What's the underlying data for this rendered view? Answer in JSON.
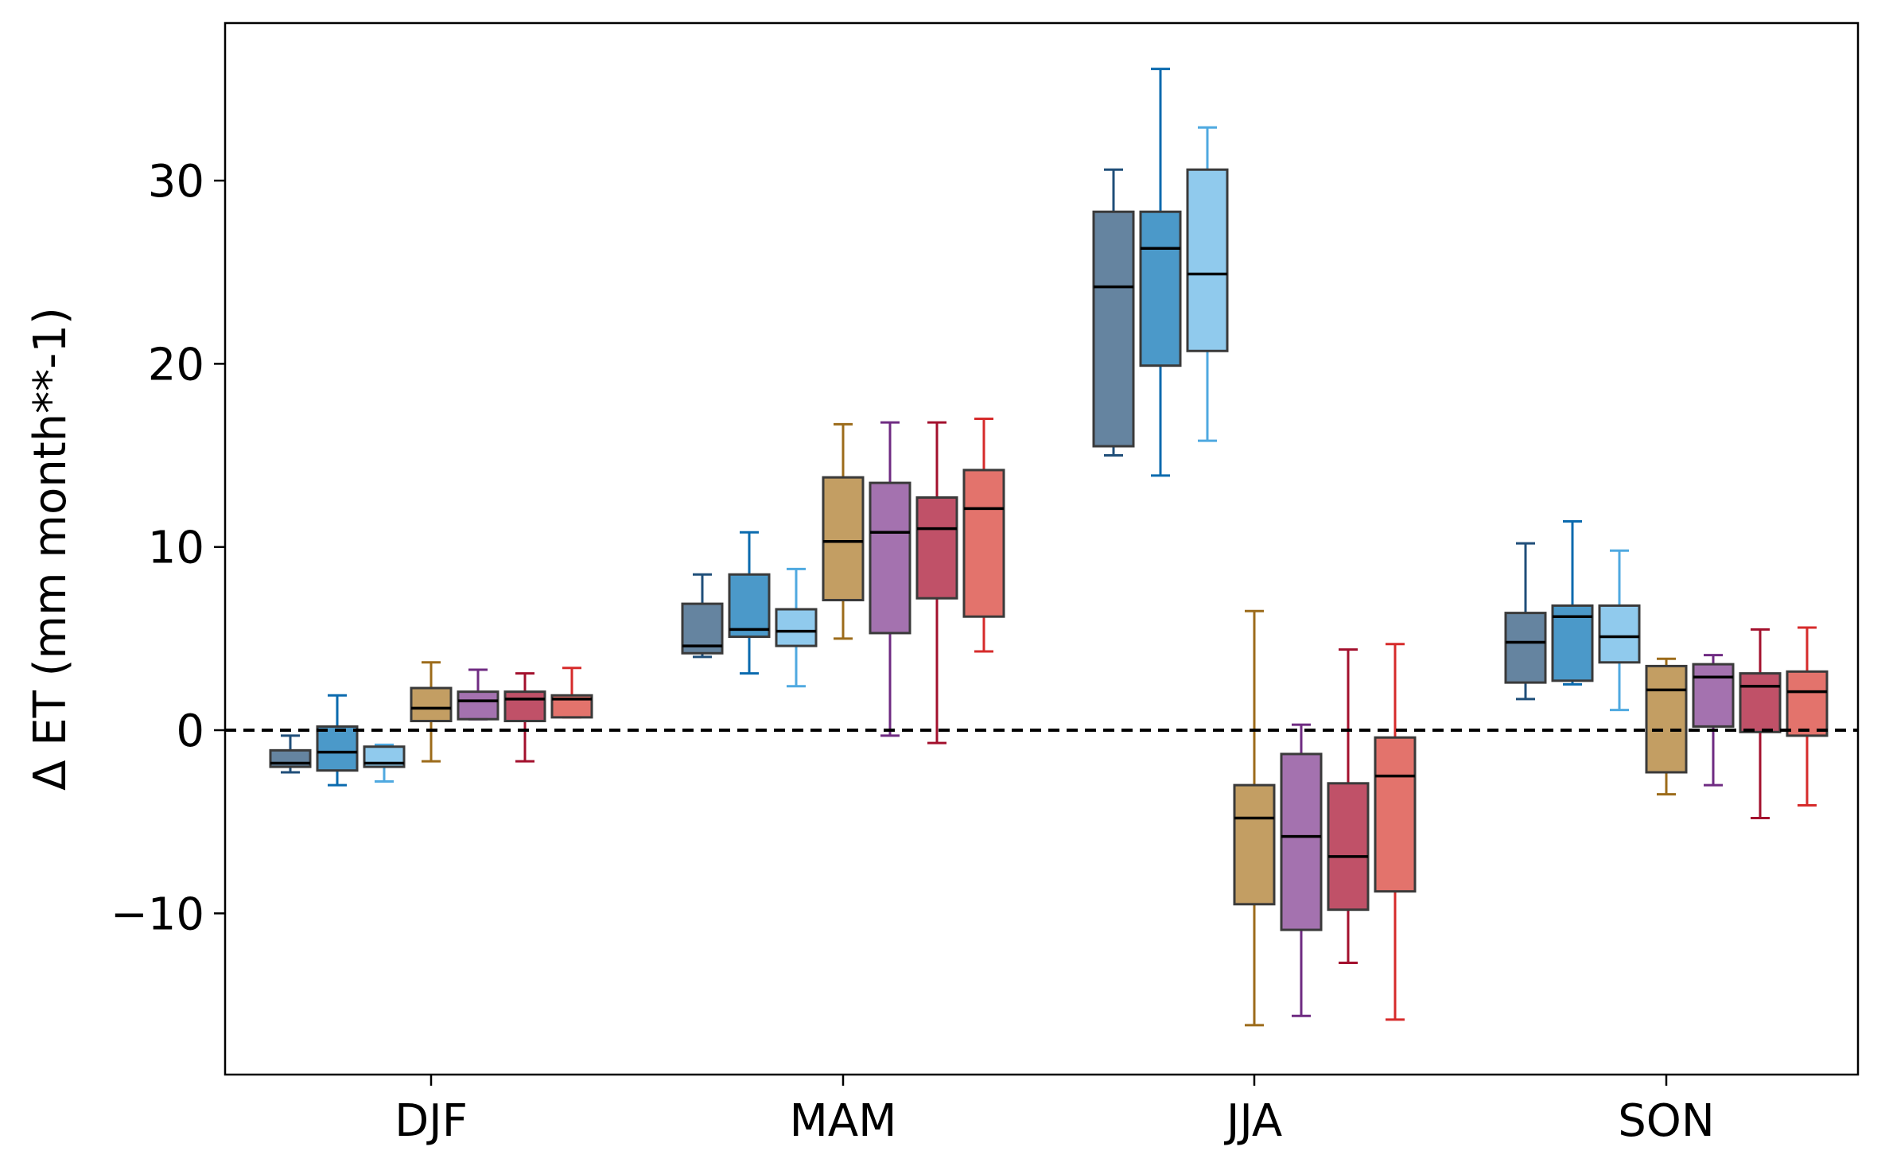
{
  "chart_data": {
    "type": "box",
    "title": "",
    "xlabel": "",
    "ylabel": "Δ ET (mm month**-1)",
    "ylim": [
      -18.8,
      38.6
    ],
    "yticks": [
      -10,
      0,
      10,
      20,
      30
    ],
    "ytick_labels": [
      "−10",
      "0",
      "10",
      "20",
      "30"
    ],
    "zero_line": 0,
    "categories": [
      "DJF",
      "MAM",
      "JJA",
      "SON"
    ],
    "series": [
      {
        "color": "#4a6f8f",
        "whisker": "#1f4e79",
        "boxes": [
          {
            "min": -2.3,
            "q1": -2.0,
            "median": -1.8,
            "q3": -1.1,
            "max": -0.3
          },
          {
            "min": 4.0,
            "q1": 4.2,
            "median": 4.6,
            "q3": 6.9,
            "max": 8.5
          },
          {
            "min": 15.0,
            "q1": 15.5,
            "median": 24.2,
            "q3": 28.3,
            "max": 30.6
          },
          {
            "min": 1.7,
            "q1": 2.6,
            "median": 4.8,
            "q3": 6.4,
            "max": 10.2
          }
        ]
      },
      {
        "color": "#2b87bf",
        "whisker": "#0a6aae",
        "boxes": [
          {
            "min": -3.0,
            "q1": -2.2,
            "median": -1.2,
            "q3": 0.2,
            "max": 1.9
          },
          {
            "min": 3.1,
            "q1": 5.1,
            "median": 5.5,
            "q3": 8.5,
            "max": 10.8
          },
          {
            "min": 13.9,
            "q1": 19.9,
            "median": 26.3,
            "q3": 28.3,
            "max": 36.1
          },
          {
            "min": 2.5,
            "q1": 2.7,
            "median": 6.2,
            "q3": 6.8,
            "max": 11.4
          }
        ]
      },
      {
        "color": "#7cc1ea",
        "whisker": "#4fa9e0",
        "boxes": [
          {
            "min": -2.8,
            "q1": -2.0,
            "median": -1.8,
            "q3": -0.9,
            "max": -0.8
          },
          {
            "min": 2.4,
            "q1": 4.6,
            "median": 5.4,
            "q3": 6.6,
            "max": 8.8
          },
          {
            "min": 15.8,
            "q1": 20.7,
            "median": 24.9,
            "q3": 30.6,
            "max": 32.9
          },
          {
            "min": 1.1,
            "q1": 3.7,
            "median": 5.1,
            "q3": 6.8,
            "max": 9.8
          }
        ]
      },
      {
        "color": "#b88d48",
        "whisker": "#9c6b1a",
        "boxes": [
          {
            "min": -1.7,
            "q1": 0.5,
            "median": 1.2,
            "q3": 2.3,
            "max": 3.7
          },
          {
            "min": 5.0,
            "q1": 7.1,
            "median": 10.3,
            "q3": 13.8,
            "max": 16.7
          },
          {
            "min": -16.1,
            "q1": -9.5,
            "median": -4.8,
            "q3": -3.0,
            "max": 6.5
          },
          {
            "min": -3.5,
            "q1": -2.3,
            "median": 2.2,
            "q3": 3.5,
            "max": 3.9
          }
        ]
      },
      {
        "color": "#9459a1",
        "whisker": "#6f2b82",
        "boxes": [
          {
            "min": 0.6,
            "q1": 0.6,
            "median": 1.6,
            "q3": 2.1,
            "max": 3.3
          },
          {
            "min": -0.3,
            "q1": 5.3,
            "median": 10.8,
            "q3": 13.5,
            "max": 16.8
          },
          {
            "min": -15.6,
            "q1": -10.9,
            "median": -5.8,
            "q3": -1.3,
            "max": 0.3
          },
          {
            "min": -3.0,
            "q1": 0.2,
            "median": 2.9,
            "q3": 3.6,
            "max": 4.1
          }
        ]
      },
      {
        "color": "#b5334d",
        "whisker": "#a3102d",
        "boxes": [
          {
            "min": -1.7,
            "q1": 0.5,
            "median": 1.7,
            "q3": 2.1,
            "max": 3.1
          },
          {
            "min": -0.7,
            "q1": 7.2,
            "median": 11.0,
            "q3": 12.7,
            "max": 16.8
          },
          {
            "min": -12.7,
            "q1": -9.8,
            "median": -6.9,
            "q3": -2.9,
            "max": 4.4
          },
          {
            "min": -4.8,
            "q1": -0.1,
            "median": 2.4,
            "q3": 3.1,
            "max": 5.5
          }
        ]
      },
      {
        "color": "#de5a52",
        "whisker": "#d62b2b",
        "boxes": [
          {
            "min": 0.7,
            "q1": 0.7,
            "median": 1.7,
            "q3": 1.9,
            "max": 3.4
          },
          {
            "min": 4.3,
            "q1": 6.2,
            "median": 12.1,
            "q3": 14.2,
            "max": 17.0
          },
          {
            "min": -15.8,
            "q1": -8.8,
            "median": -2.5,
            "q3": -0.4,
            "max": 4.7
          },
          {
            "min": -4.1,
            "q1": -0.3,
            "median": 2.1,
            "q3": 3.2,
            "max": 5.6
          }
        ]
      }
    ]
  }
}
